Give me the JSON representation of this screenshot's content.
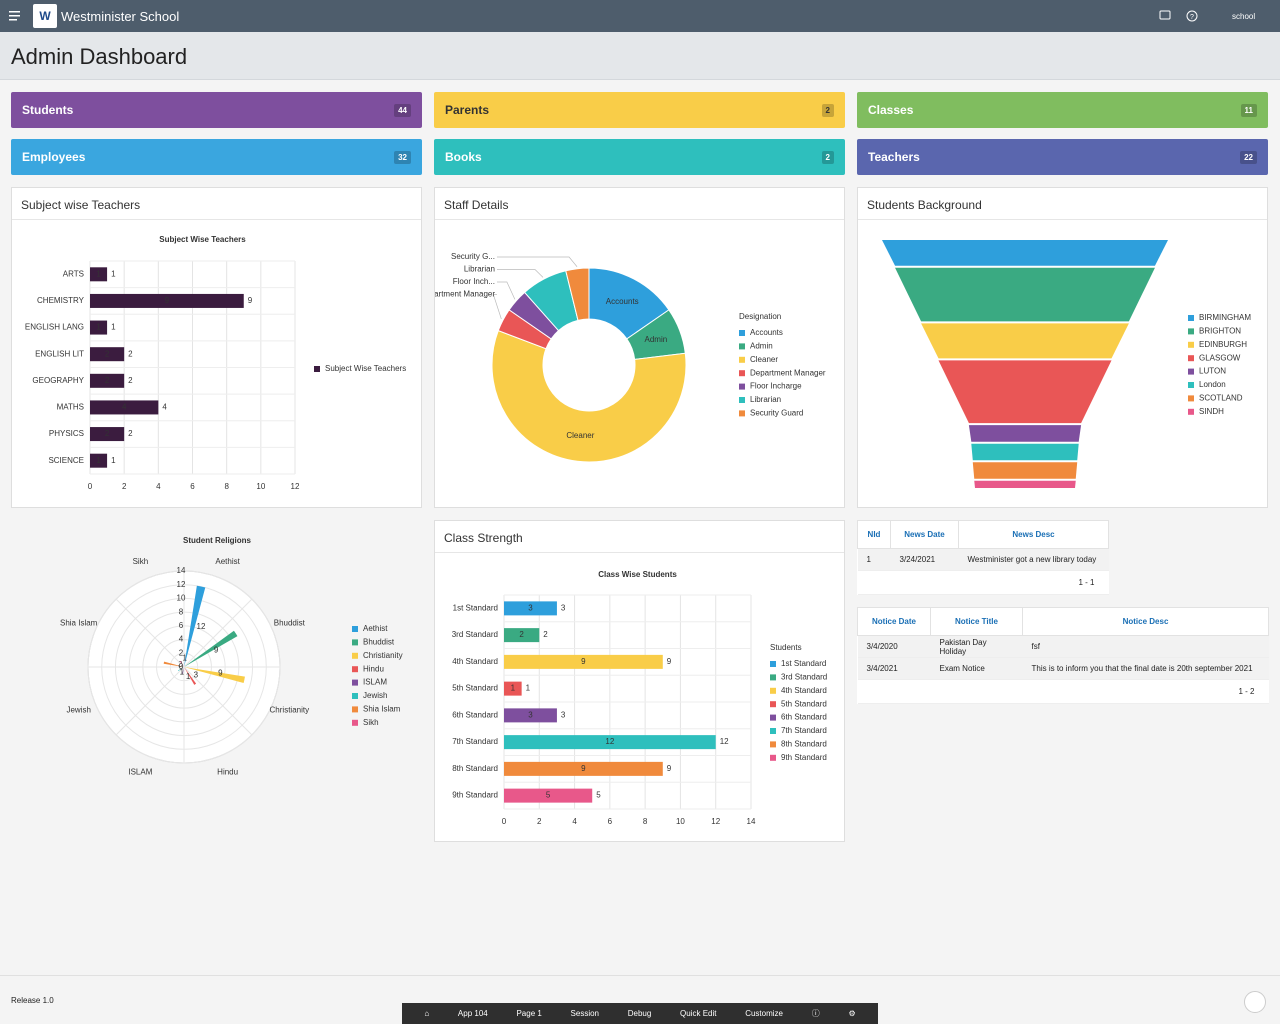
{
  "header": {
    "app_name": "Westminister School",
    "user": "school"
  },
  "page_title": "Admin Dashboard",
  "cards": [
    {
      "label": "Students",
      "count": 44,
      "color": "#7e4f9e"
    },
    {
      "label": "Parents",
      "count": 2,
      "color": "#f9cd48"
    },
    {
      "label": "Classes",
      "count": 11,
      "color": "#80bd5f"
    },
    {
      "label": "Employees",
      "count": 32,
      "color": "#3aa6df"
    },
    {
      "label": "Books",
      "count": 2,
      "color": "#2ebfbd"
    },
    {
      "label": "Teachers",
      "count": 22,
      "color": "#5a66ae"
    }
  ],
  "chart_data": [
    {
      "type": "bar",
      "panel_title": "Subject wise Teachers",
      "title": "Subject Wise Teachers",
      "orientation": "horizontal",
      "categories": [
        "ARTS",
        "CHEMISTRY",
        "ENGLISH LANG",
        "ENGLISH LIT",
        "GEOGRAPHY",
        "MATHS",
        "PHYSICS",
        "SCIENCE"
      ],
      "series": [
        {
          "name": "Subject Wise Teachers",
          "color": "#3b1c3f",
          "values": [
            1,
            9,
            1,
            2,
            2,
            4,
            2,
            1
          ]
        }
      ],
      "xlim": [
        0,
        12
      ],
      "xticks": [
        0,
        2,
        4,
        6,
        8,
        10,
        12
      ],
      "grid": true
    },
    {
      "type": "donut",
      "panel_title": "Staff Details",
      "categories": [
        "Accounts",
        "Admin",
        "Cleaner",
        "Department Manager",
        "Floor Incharge",
        "Librarian",
        "Security Guard"
      ],
      "labels": [
        "Accounts",
        "Admin",
        "Cleaner",
        "Department Manager",
        "Floor Inch...",
        "Librarian",
        "Security G..."
      ],
      "values": [
        4,
        2,
        15,
        1,
        1,
        2,
        1
      ],
      "colors": [
        "#2e9fdc",
        "#3aaa82",
        "#f9cd48",
        "#e95656",
        "#7e4f9e",
        "#2ebfbd",
        "#f08a3c"
      ],
      "legend_title": "Designation"
    },
    {
      "type": "funnel",
      "panel_title": "Students Background",
      "categories": [
        "BIRMINGHAM",
        "BRIGHTON",
        "EDINBURGH",
        "GLASGOW",
        "LUTON",
        "London",
        "SCOTLAND",
        "SINDH"
      ],
      "values": [
        3,
        6,
        4,
        7,
        2,
        2,
        2,
        1
      ],
      "colors": [
        "#2e9fdc",
        "#3aaa82",
        "#f9cd48",
        "#e95656",
        "#7e4f9e",
        "#2ebfbd",
        "#f08a3c",
        "#e8588a"
      ]
    },
    {
      "type": "polar",
      "title": "Student Religions",
      "categories": [
        "Aethist",
        "Bhuddist",
        "Christianity",
        "Hindu",
        "ISLAM",
        "Jewish",
        "Shia Islam",
        "Sikh"
      ],
      "values": [
        12,
        9,
        9,
        3,
        1,
        1,
        3,
        1
      ],
      "colors": [
        "#2e9fdc",
        "#3aaa82",
        "#f9cd48",
        "#e95656",
        "#7e4f9e",
        "#2ebfbd",
        "#f08a3c",
        "#e8588a"
      ],
      "rlim": [
        0,
        14
      ],
      "rticks": [
        0,
        2,
        4,
        6,
        8,
        10,
        12,
        14
      ]
    },
    {
      "type": "bar",
      "panel_title": "Class Strength",
      "title": "Class Wise Students",
      "orientation": "horizontal",
      "categories": [
        "1st Standard",
        "3rd Standard",
        "4th Standard",
        "5th Standard",
        "6th Standard",
        "7th Standard",
        "8th Standard",
        "9th Standard"
      ],
      "values": [
        3,
        2,
        9,
        1,
        3,
        12,
        9,
        5
      ],
      "colors": [
        "#2e9fdc",
        "#3aaa82",
        "#f9cd48",
        "#e95656",
        "#7e4f9e",
        "#2ebfbd",
        "#f08a3c",
        "#e8588a"
      ],
      "legend_title": "Students",
      "xlim": [
        0,
        14
      ],
      "xticks": [
        0,
        2,
        4,
        6,
        8,
        10,
        12,
        14
      ],
      "grid": true
    }
  ],
  "news_table": {
    "columns": [
      "NId",
      "News Date",
      "News Desc"
    ],
    "rows": [
      [
        1,
        "3/24/2021",
        "Westminister got a new library today"
      ]
    ],
    "pagination": "1 - 1"
  },
  "notice_table": {
    "columns": [
      "Notice Date",
      "Notice Title",
      "Notice Desc"
    ],
    "rows": [
      [
        "3/4/2020",
        "Pakistan Day Holiday",
        "fsf"
      ],
      [
        "3/4/2021",
        "Exam Notice",
        "This is to inform you that the final date is 20th september 2021"
      ]
    ],
    "pagination": "1 - 2"
  },
  "footer": {
    "release": "Release 1.0"
  },
  "toolbar": [
    "App 104",
    "Page 1",
    "Session",
    "Debug",
    "Quick Edit",
    "Customize"
  ]
}
